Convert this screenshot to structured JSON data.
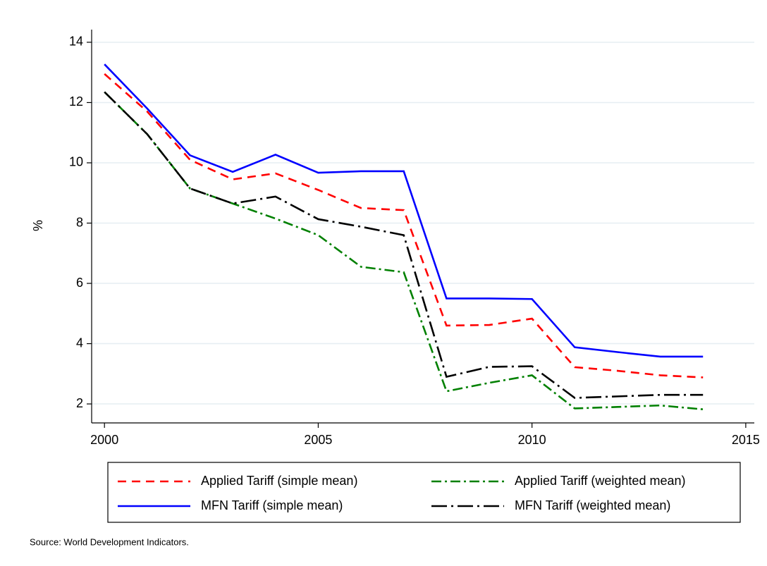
{
  "chart_data": {
    "type": "line",
    "y_label": "%",
    "source": "Source: World Development Indicators.",
    "x": [
      2000,
      2001,
      2002,
      2003,
      2004,
      2005,
      2006,
      2007,
      2008,
      2009,
      2010,
      2011,
      2012,
      2013,
      2014
    ],
    "xlim": [
      1999.7,
      2015.2
    ],
    "xticks": [
      2000,
      2005,
      2010,
      2015
    ],
    "ylim": [
      1.37,
      14.42
    ],
    "yticks": [
      2,
      4,
      6,
      8,
      10,
      12,
      14
    ],
    "grid": true,
    "series": [
      {
        "name": "Applied Tariff (simple mean)",
        "color": "#ff0000",
        "dash": "12 8",
        "values": [
          12.95,
          11.7,
          10.1,
          9.45,
          9.65,
          9.1,
          8.5,
          8.43,
          4.6,
          4.62,
          4.83,
          3.22,
          3.1,
          2.95,
          2.88
        ]
      },
      {
        "name": "Applied Tariff (weighted mean)",
        "color": "#008000",
        "dash": "14 5 3 5",
        "values": [
          12.35,
          10.95,
          9.15,
          8.65,
          8.15,
          7.6,
          6.55,
          6.37,
          2.42,
          2.7,
          2.95,
          1.85,
          1.9,
          1.95,
          1.82
        ]
      },
      {
        "name": "MFN Tariff (simple mean)",
        "color": "#0000ff",
        "dash": "none",
        "values": [
          13.27,
          11.8,
          10.25,
          9.7,
          10.27,
          9.67,
          9.72,
          9.72,
          5.5,
          5.5,
          5.48,
          3.88,
          3.72,
          3.57,
          3.57
        ]
      },
      {
        "name": "MFN Tariff (weighted mean)",
        "color": "#000000",
        "dash": "22 6 3 6",
        "values": [
          12.35,
          10.95,
          9.15,
          8.65,
          8.88,
          8.13,
          7.88,
          7.6,
          2.9,
          3.23,
          3.25,
          2.2,
          2.25,
          2.3,
          2.3
        ]
      }
    ]
  }
}
